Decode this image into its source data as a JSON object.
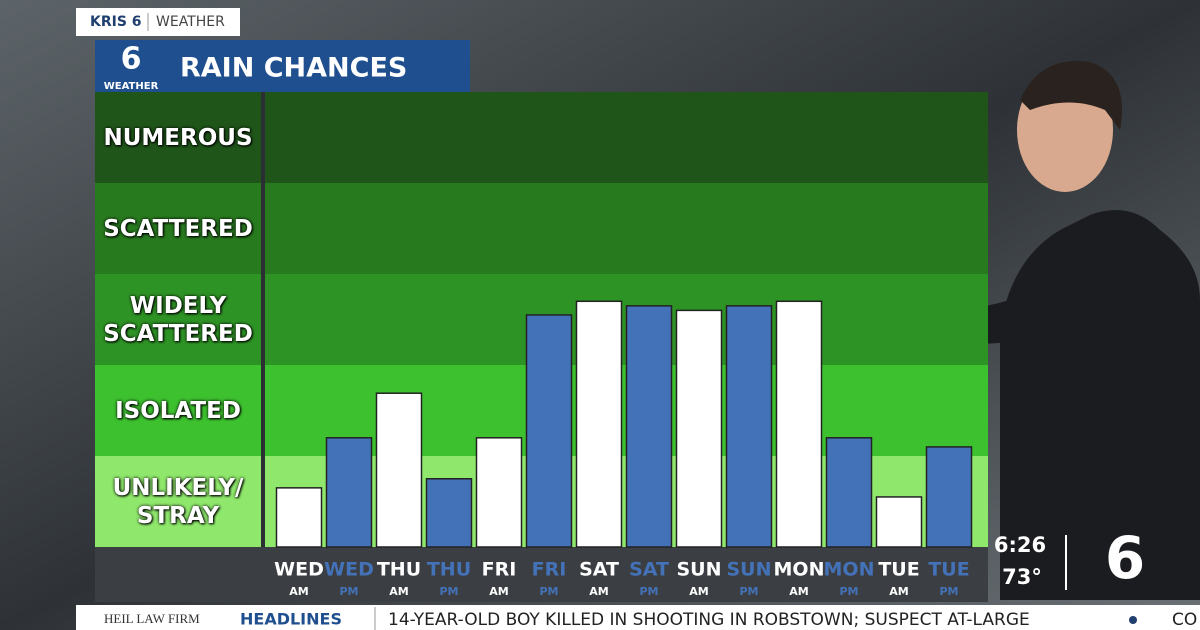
{
  "header": {
    "station": "KRIS 6",
    "section": "WEATHER",
    "logo_number": "6",
    "logo_word": "WEATHER"
  },
  "chart_data": {
    "type": "bar",
    "title": "RAIN CHANCES",
    "categories": [
      "WED",
      "WED",
      "THU",
      "THU",
      "FRI",
      "FRI",
      "SAT",
      "SAT",
      "SUN",
      "SUN",
      "MON",
      "MON",
      "TUE",
      "TUE"
    ],
    "periods": [
      "AM",
      "PM",
      "AM",
      "PM",
      "AM",
      "PM",
      "AM",
      "PM",
      "AM",
      "PM",
      "AM",
      "PM",
      "AM",
      "PM"
    ],
    "values": [
      0.65,
      1.2,
      1.69,
      0.75,
      1.2,
      2.55,
      2.7,
      2.65,
      2.6,
      2.65,
      2.7,
      1.2,
      0.55,
      1.1
    ],
    "colors": [
      "#ffffff",
      "#4472b8",
      "#ffffff",
      "#4472b8",
      "#ffffff",
      "#4472b8",
      "#ffffff",
      "#4472b8",
      "#ffffff",
      "#4472b8",
      "#ffffff",
      "#4472b8",
      "#ffffff",
      "#4472b8"
    ],
    "ylim": [
      0,
      5
    ],
    "yticks": [
      {
        "value": 0.5,
        "label": "UNLIKELY/ STRAY"
      },
      {
        "value": 1.5,
        "label": "ISOLATED"
      },
      {
        "value": 2.5,
        "label": "WIDELY SCATTERED"
      },
      {
        "value": 3.5,
        "label": "SCATTERED"
      },
      {
        "value": 4.5,
        "label": "NUMEROUS"
      }
    ],
    "band_colors": [
      "#8fe86c",
      "#3dc12f",
      "#2e9325",
      "#287a1f",
      "#1f5519"
    ]
  },
  "status": {
    "time": "6:26",
    "temperature": "73°",
    "logo_number": "6"
  },
  "ticker": {
    "sponsor": "HEIL LAW FIRM",
    "label": "HEADLINES",
    "headline": "14-YEAR-OLD BOY KILLED IN SHOOTING IN ROBSTOWN; SUSPECT AT-LARGE",
    "next": "CO"
  }
}
